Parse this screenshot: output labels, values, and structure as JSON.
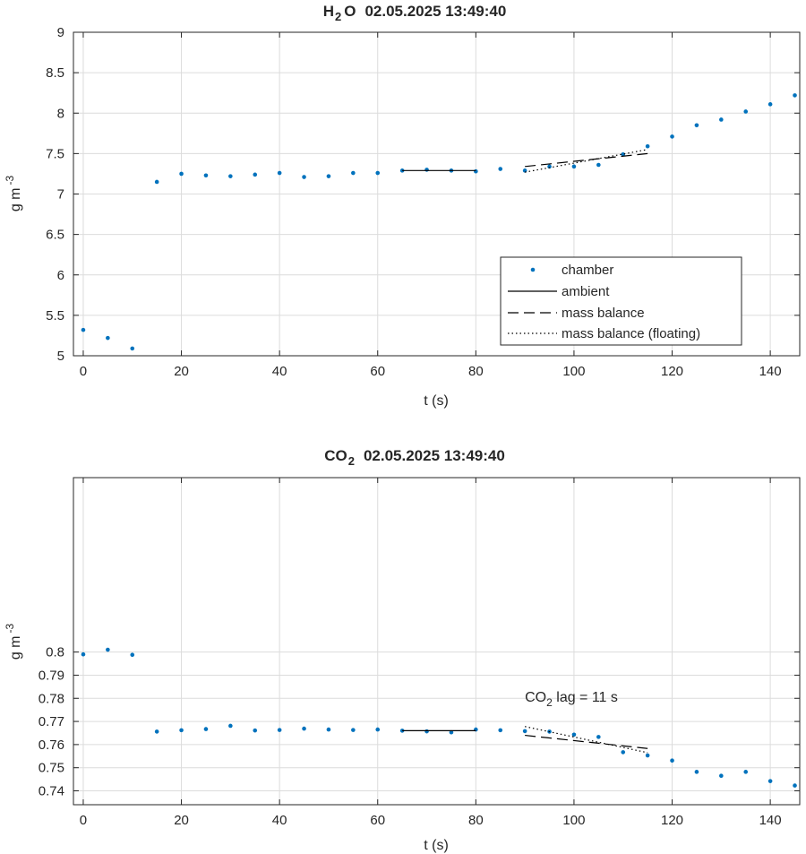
{
  "colors": {
    "chamber": "#0072BD",
    "lines": "#000000",
    "grid": "#DCDCDC",
    "axis": "#262626"
  },
  "legend_entries": {
    "chamber": "chamber",
    "ambient": "ambient",
    "mass_balance": "mass balance",
    "mass_balance_floating": "mass balance (floating)"
  },
  "chart_data": [
    {
      "type": "scatter",
      "title_species": "H",
      "title_subscript": "2",
      "title_species_suffix": "O",
      "title_datetime": "02.05.2025 13:49:40",
      "xlabel": "t (s)",
      "ylabel_main": "g m",
      "ylabel_exponent": "-3",
      "xlim": [
        -2,
        146
      ],
      "ylim": [
        5,
        9
      ],
      "xticks": [
        0,
        20,
        40,
        60,
        80,
        100,
        120,
        140
      ],
      "yticks": [
        5,
        5.5,
        6,
        6.5,
        7,
        7.5,
        8,
        8.5,
        9
      ],
      "ytick_labels": [
        "5",
        "5.5",
        "6",
        "6.5",
        "7",
        "7.5",
        "8",
        "8.5",
        "9"
      ],
      "grid": true,
      "legend_position": "lower-right",
      "series": [
        {
          "name": "chamber",
          "style": "dots",
          "x": [
            0,
            5,
            10,
            15,
            20,
            25,
            30,
            35,
            40,
            45,
            50,
            55,
            60,
            65,
            70,
            75,
            80,
            85,
            90,
            95,
            100,
            105,
            110,
            115,
            120,
            125,
            130,
            135,
            140,
            145
          ],
          "y": [
            5.32,
            5.22,
            5.09,
            7.15,
            7.25,
            7.23,
            7.22,
            7.24,
            7.26,
            7.21,
            7.22,
            7.26,
            7.26,
            7.29,
            7.3,
            7.29,
            7.28,
            7.31,
            7.29,
            7.34,
            7.34,
            7.36,
            7.49,
            7.59,
            7.71,
            7.85,
            7.92,
            8.02,
            8.11,
            8.22
          ]
        },
        {
          "name": "ambient",
          "style": "solid",
          "x": [
            65,
            80
          ],
          "y": [
            7.29,
            7.29
          ]
        },
        {
          "name": "mass balance",
          "style": "dashed",
          "x": [
            90,
            115
          ],
          "y": [
            7.34,
            7.5
          ]
        },
        {
          "name": "mass balance (floating)",
          "style": "dotted",
          "x": [
            90,
            115
          ],
          "y": [
            7.27,
            7.55
          ]
        }
      ]
    },
    {
      "type": "scatter",
      "title_species": "CO",
      "title_subscript": "2",
      "title_species_suffix": "",
      "title_datetime": "02.05.2025 13:49:40",
      "xlabel": "t (s)",
      "ylabel_main": "g m",
      "ylabel_exponent": "-3",
      "xlim": [
        -2,
        146
      ],
      "ylim": [
        0.734,
        0.8754
      ],
      "xticks": [
        0,
        20,
        40,
        60,
        80,
        100,
        120,
        140
      ],
      "yticks": [
        0.74,
        0.75,
        0.76,
        0.77,
        0.78,
        0.79,
        0.8
      ],
      "ytick_labels": [
        "0.74",
        "0.75",
        "0.76",
        "0.77",
        "0.78",
        "0.79",
        "0.8"
      ],
      "grid": true,
      "annotation_main": "CO",
      "annotation_subscript": "2",
      "annotation_rest": " lag = 11 s",
      "annotation_x": 90,
      "annotation_y": 0.7785,
      "series": [
        {
          "name": "chamber",
          "style": "dots",
          "x": [
            0,
            5,
            10,
            15,
            20,
            25,
            30,
            35,
            40,
            45,
            50,
            55,
            60,
            65,
            70,
            75,
            80,
            85,
            90,
            95,
            100,
            105,
            110,
            115,
            120,
            125,
            130,
            135,
            140,
            145
          ],
          "y": [
            0.799,
            0.801,
            0.7988,
            0.7656,
            0.7662,
            0.7667,
            0.7681,
            0.7661,
            0.7663,
            0.7669,
            0.7665,
            0.7663,
            0.7665,
            0.766,
            0.7657,
            0.7653,
            0.7665,
            0.7662,
            0.7658,
            0.7656,
            0.7643,
            0.7633,
            0.7567,
            0.7553,
            0.7531,
            0.7482,
            0.7465,
            0.7482,
            0.7442,
            0.7423
          ]
        },
        {
          "name": "ambient",
          "style": "solid",
          "x": [
            65,
            80
          ],
          "y": [
            0.766,
            0.766
          ]
        },
        {
          "name": "mass balance",
          "style": "dashed",
          "x": [
            90,
            115
          ],
          "y": [
            0.764,
            0.7583
          ]
        },
        {
          "name": "mass balance (floating)",
          "style": "dotted",
          "x": [
            90,
            115
          ],
          "y": [
            0.7678,
            0.7565
          ]
        }
      ]
    }
  ]
}
